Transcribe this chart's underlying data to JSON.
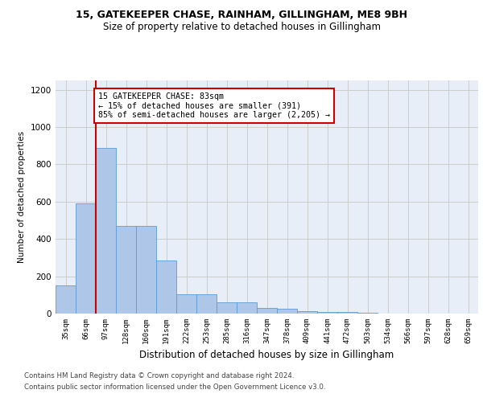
{
  "title1": "15, GATEKEEPER CHASE, RAINHAM, GILLINGHAM, ME8 9BH",
  "title2": "Size of property relative to detached houses in Gillingham",
  "xlabel": "Distribution of detached houses by size in Gillingham",
  "ylabel": "Number of detached properties",
  "bin_labels": [
    "35sqm",
    "66sqm",
    "97sqm",
    "128sqm",
    "160sqm",
    "191sqm",
    "222sqm",
    "253sqm",
    "285sqm",
    "316sqm",
    "347sqm",
    "378sqm",
    "409sqm",
    "441sqm",
    "472sqm",
    "503sqm",
    "534sqm",
    "566sqm",
    "597sqm",
    "628sqm",
    "659sqm"
  ],
  "bar_values": [
    150,
    590,
    890,
    470,
    470,
    285,
    105,
    105,
    60,
    60,
    30,
    25,
    15,
    10,
    10,
    3,
    2,
    1,
    1,
    1,
    0
  ],
  "bar_color": "#aec6e8",
  "bar_edgecolor": "#5b9bd5",
  "red_line_x": 1.5,
  "annotation_text": "15 GATEKEEPER CHASE: 83sqm\n← 15% of detached houses are smaller (391)\n85% of semi-detached houses are larger (2,205) →",
  "annotation_box_color": "#ffffff",
  "annotation_border_color": "#cc0000",
  "ylim": [
    0,
    1250
  ],
  "yticks": [
    0,
    200,
    400,
    600,
    800,
    1000,
    1200
  ],
  "grid_color": "#cccccc",
  "footer1": "Contains HM Land Registry data © Crown copyright and database right 2024.",
  "footer2": "Contains public sector information licensed under the Open Government Licence v3.0.",
  "bg_color": "#e8eef7"
}
